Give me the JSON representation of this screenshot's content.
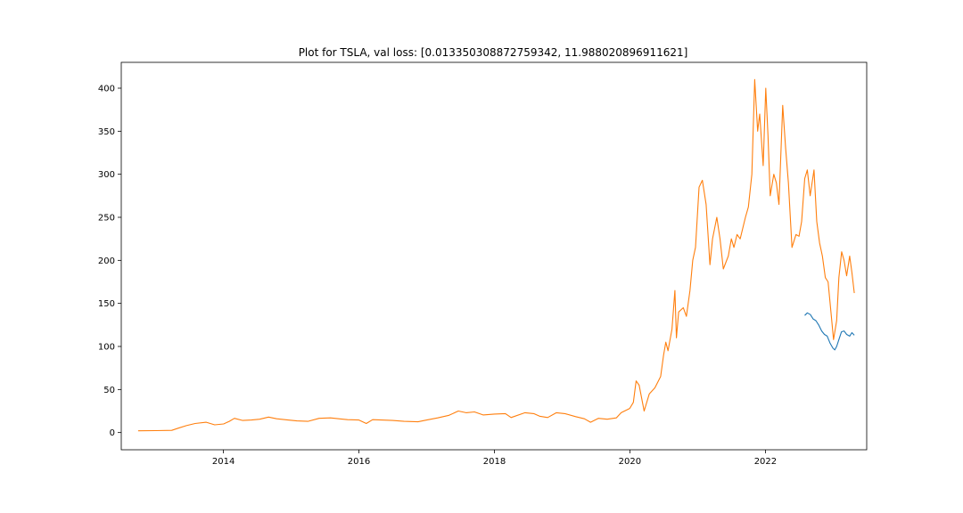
{
  "chart_data": {
    "type": "line",
    "title": "Plot for TSLA, val loss: [0.013350308872759342, 11.988020896911621]",
    "xlabel": "",
    "ylabel": "",
    "xlim": [
      "2012-06-29",
      "2023-07-01"
    ],
    "ylim": [
      -20,
      430
    ],
    "x_ticks": [
      {
        "value": "2014-01-01",
        "label": "2014"
      },
      {
        "value": "2016-01-01",
        "label": "2016"
      },
      {
        "value": "2018-01-01",
        "label": "2018"
      },
      {
        "value": "2020-01-01",
        "label": "2020"
      },
      {
        "value": "2022-01-01",
        "label": "2022"
      }
    ],
    "y_ticks": [
      0,
      50,
      100,
      150,
      200,
      250,
      300,
      350,
      400
    ],
    "grid": false,
    "legend": "none",
    "series": [
      {
        "color": "#ff7f0e",
        "points": [
          [
            "2012-09-28",
            2.0
          ],
          [
            "2012-12-31",
            2.2
          ],
          [
            "2013-03-28",
            2.6
          ],
          [
            "2013-05-01",
            5.0
          ],
          [
            "2013-06-15",
            8.0
          ],
          [
            "2013-08-01",
            10.5
          ],
          [
            "2013-09-30",
            12.0
          ],
          [
            "2013-11-15",
            9.0
          ],
          [
            "2014-01-02",
            10.0
          ],
          [
            "2014-02-01",
            13.0
          ],
          [
            "2014-03-01",
            16.5
          ],
          [
            "2014-04-15",
            14.0
          ],
          [
            "2014-06-01",
            14.5
          ],
          [
            "2014-07-15",
            15.5
          ],
          [
            "2014-09-01",
            18.0
          ],
          [
            "2014-10-15",
            16.0
          ],
          [
            "2014-12-15",
            14.5
          ],
          [
            "2015-02-01",
            13.5
          ],
          [
            "2015-04-01",
            13.0
          ],
          [
            "2015-06-01",
            16.5
          ],
          [
            "2015-08-01",
            17.0
          ],
          [
            "2015-09-15",
            16.0
          ],
          [
            "2015-11-01",
            15.0
          ],
          [
            "2016-01-01",
            14.5
          ],
          [
            "2016-02-10",
            10.5
          ],
          [
            "2016-03-15",
            15.0
          ],
          [
            "2016-05-01",
            14.5
          ],
          [
            "2016-07-01",
            14.0
          ],
          [
            "2016-09-01",
            13.0
          ],
          [
            "2016-11-15",
            12.5
          ],
          [
            "2017-01-01",
            14.5
          ],
          [
            "2017-03-01",
            17.0
          ],
          [
            "2017-05-01",
            20.0
          ],
          [
            "2017-06-20",
            25.0
          ],
          [
            "2017-08-01",
            23.0
          ],
          [
            "2017-09-15",
            24.0
          ],
          [
            "2017-11-01",
            20.5
          ],
          [
            "2018-01-01",
            21.5
          ],
          [
            "2018-03-01",
            22.0
          ],
          [
            "2018-04-01",
            17.5
          ],
          [
            "2018-06-15",
            23.0
          ],
          [
            "2018-08-01",
            22.0
          ],
          [
            "2018-09-01",
            19.0
          ],
          [
            "2018-10-15",
            17.5
          ],
          [
            "2018-12-01",
            23.0
          ],
          [
            "2019-01-15",
            22.0
          ],
          [
            "2019-03-15",
            18.5
          ],
          [
            "2019-05-01",
            16.0
          ],
          [
            "2019-06-03",
            12.0
          ],
          [
            "2019-07-15",
            16.5
          ],
          [
            "2019-09-01",
            15.5
          ],
          [
            "2019-10-20",
            17.0
          ],
          [
            "2019-11-15",
            23.0
          ],
          [
            "2019-12-31",
            28.0
          ],
          [
            "2020-01-20",
            35.0
          ],
          [
            "2020-02-04",
            60.0
          ],
          [
            "2020-02-20",
            55.0
          ],
          [
            "2020-03-18",
            25.0
          ],
          [
            "2020-04-15",
            45.0
          ],
          [
            "2020-05-15",
            52.0
          ],
          [
            "2020-06-15",
            65.0
          ],
          [
            "2020-07-01",
            90.0
          ],
          [
            "2020-07-13",
            105.0
          ],
          [
            "2020-07-25",
            95.0
          ],
          [
            "2020-08-15",
            120.0
          ],
          [
            "2020-08-31",
            165.0
          ],
          [
            "2020-09-08",
            110.0
          ],
          [
            "2020-09-20",
            140.0
          ],
          [
            "2020-10-15",
            145.0
          ],
          [
            "2020-11-01",
            135.0
          ],
          [
            "2020-11-20",
            165.0
          ],
          [
            "2020-12-05",
            200.0
          ],
          [
            "2020-12-20",
            215.0
          ],
          [
            "2021-01-08",
            285.0
          ],
          [
            "2021-01-26",
            293.0
          ],
          [
            "2021-02-15",
            265.0
          ],
          [
            "2021-03-08",
            195.0
          ],
          [
            "2021-03-22",
            225.0
          ],
          [
            "2021-04-14",
            250.0
          ],
          [
            "2021-05-01",
            225.0
          ],
          [
            "2021-05-19",
            190.0
          ],
          [
            "2021-06-15",
            205.0
          ],
          [
            "2021-07-01",
            225.0
          ],
          [
            "2021-07-15",
            215.0
          ],
          [
            "2021-08-01",
            230.0
          ],
          [
            "2021-08-18",
            225.0
          ],
          [
            "2021-09-15",
            250.0
          ],
          [
            "2021-10-01",
            262.0
          ],
          [
            "2021-10-20",
            300.0
          ],
          [
            "2021-11-04",
            410.0
          ],
          [
            "2021-11-20",
            350.0
          ],
          [
            "2021-12-01",
            370.0
          ],
          [
            "2021-12-20",
            310.0
          ],
          [
            "2022-01-03",
            400.0
          ],
          [
            "2022-01-15",
            345.0
          ],
          [
            "2022-01-27",
            275.0
          ],
          [
            "2022-02-15",
            300.0
          ],
          [
            "2022-03-01",
            290.0
          ],
          [
            "2022-03-15",
            265.0
          ],
          [
            "2022-04-04",
            380.0
          ],
          [
            "2022-04-20",
            330.0
          ],
          [
            "2022-05-05",
            290.0
          ],
          [
            "2022-05-24",
            215.0
          ],
          [
            "2022-06-15",
            230.0
          ],
          [
            "2022-07-01",
            228.0
          ],
          [
            "2022-07-15",
            245.0
          ],
          [
            "2022-08-01",
            295.0
          ],
          [
            "2022-08-15",
            305.0
          ],
          [
            "2022-08-30",
            275.0
          ],
          [
            "2022-09-20",
            305.0
          ],
          [
            "2022-10-05",
            245.0
          ],
          [
            "2022-10-20",
            220.0
          ],
          [
            "2022-11-04",
            205.0
          ],
          [
            "2022-11-20",
            180.0
          ],
          [
            "2022-12-05",
            175.0
          ],
          [
            "2022-12-20",
            140.0
          ],
          [
            "2023-01-03",
            108.0
          ],
          [
            "2023-01-20",
            130.0
          ],
          [
            "2023-02-01",
            180.0
          ],
          [
            "2023-02-16",
            210.0
          ],
          [
            "2023-03-01",
            200.0
          ],
          [
            "2023-03-15",
            182.0
          ],
          [
            "2023-03-31",
            205.0
          ],
          [
            "2023-04-12",
            186.0
          ],
          [
            "2023-04-25",
            162.0
          ]
        ]
      },
      {
        "color": "#1f77b4",
        "points": [
          [
            "2022-08-01",
            136.0
          ],
          [
            "2022-08-15",
            139.0
          ],
          [
            "2022-08-31",
            137.0
          ],
          [
            "2022-09-15",
            132.0
          ],
          [
            "2022-09-30",
            130.0
          ],
          [
            "2022-10-15",
            125.0
          ],
          [
            "2022-10-31",
            118.0
          ],
          [
            "2022-11-15",
            114.0
          ],
          [
            "2022-11-30",
            112.0
          ],
          [
            "2022-12-15",
            104.0
          ],
          [
            "2022-12-31",
            98.0
          ],
          [
            "2023-01-10",
            96.0
          ],
          [
            "2023-01-20",
            100.0
          ],
          [
            "2023-02-01",
            108.0
          ],
          [
            "2023-02-15",
            117.0
          ],
          [
            "2023-03-01",
            118.0
          ],
          [
            "2023-03-15",
            114.0
          ],
          [
            "2023-03-31",
            112.0
          ],
          [
            "2023-04-12",
            116.0
          ],
          [
            "2023-04-25",
            113.0
          ]
        ]
      }
    ]
  }
}
